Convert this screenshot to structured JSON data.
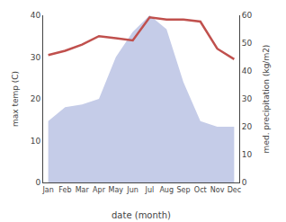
{
  "chart_data": {
    "type": "line",
    "categories": [
      "Jan",
      "Feb",
      "Mar",
      "Apr",
      "May",
      "Jun",
      "Jul",
      "Aug",
      "Sep",
      "Oct",
      "Nov",
      "Dec"
    ],
    "xlabel": "date (month)",
    "ylabel": "max temp (C)",
    "y2label": "med. precipitation (kg/m2)",
    "series": [
      {
        "type": "area",
        "axis": "y2",
        "color": "#c5cce8",
        "values": [
          22,
          27,
          28,
          30,
          45,
          54,
          60,
          55,
          36,
          22,
          20,
          20
        ]
      },
      {
        "type": "line",
        "color": "#c0504d",
        "values": [
          30.5,
          31.5,
          33.0,
          35.0,
          34.5,
          34.0,
          39.5,
          39.0,
          39.0,
          38.5,
          32.0,
          29.5
        ]
      }
    ],
    "ylim": [
      0,
      40
    ],
    "yticks": [
      0,
      10,
      20,
      30,
      40
    ],
    "y2lim": [
      0,
      60
    ],
    "y2ticks": [
      0,
      10,
      20,
      30,
      40,
      50,
      60
    ],
    "grid": false
  }
}
